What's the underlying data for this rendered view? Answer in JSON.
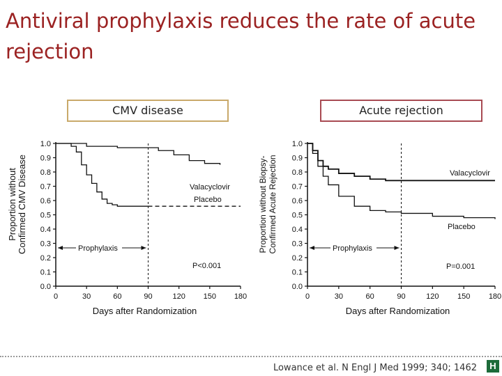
{
  "slide": {
    "title": "Antiviral prophylaxis reduces the rate of acute rejection",
    "citation": "Lowance et al. N Engl J Med 1999; 340; 1462",
    "logo_text": "H"
  },
  "colors": {
    "title": "#9b2222",
    "box_left_border": "#c9a96a",
    "box_right_border": "#a84a52",
    "line": "#111111"
  },
  "chart_data": [
    {
      "type": "line",
      "box_label": "CMV disease",
      "ylabel": [
        "Proportion without",
        "Confirmed CMV Disease"
      ],
      "xlabel": "Days after Randomization",
      "x_ticks": [
        0,
        30,
        60,
        90,
        120,
        150,
        180
      ],
      "y_ticks": [
        "0.0",
        "0.1",
        "0.2",
        "0.3",
        "0.4",
        "0.5",
        "0.6",
        "0.7",
        "0.8",
        "0.9",
        "1.0"
      ],
      "xlim": [
        0,
        180
      ],
      "ylim": [
        0,
        1
      ],
      "prophylaxis_end_day": 90,
      "prophylaxis_label": "Prophylaxis",
      "p_value": "P<0.001",
      "series": [
        {
          "name": "Valacyclovir",
          "style": "solid-then-dashed",
          "x": [
            0,
            20,
            30,
            45,
            60,
            80,
            90,
            100,
            115,
            130,
            145,
            160
          ],
          "y": [
            1.0,
            1.0,
            0.98,
            0.98,
            0.97,
            0.97,
            0.97,
            0.95,
            0.92,
            0.88,
            0.86,
            0.85
          ]
        },
        {
          "name": "Placebo",
          "style": "solid-then-dashed",
          "x": [
            0,
            15,
            20,
            25,
            30,
            35,
            40,
            45,
            50,
            55,
            60,
            90,
            180
          ],
          "y": [
            1.0,
            0.98,
            0.94,
            0.85,
            0.78,
            0.72,
            0.66,
            0.61,
            0.58,
            0.57,
            0.56,
            0.56,
            0.56
          ]
        }
      ]
    },
    {
      "type": "line",
      "box_label": "Acute rejection",
      "ylabel": [
        "Proportion without Biopsy-",
        "Confirmed Acute Rejection"
      ],
      "xlabel": "Days after Randomization",
      "x_ticks": [
        0,
        30,
        60,
        90,
        120,
        150,
        180
      ],
      "y_ticks": [
        "0.0",
        "0.1",
        "0.2",
        "0.3",
        "0.4",
        "0.5",
        "0.6",
        "0.7",
        "0.8",
        "0.9",
        "1.0"
      ],
      "xlim": [
        0,
        180
      ],
      "ylim": [
        0,
        1
      ],
      "prophylaxis_end_day": 90,
      "prophylaxis_label": "Prophylaxis",
      "p_value": "P=0.001",
      "series": [
        {
          "name": "Valacyclovir",
          "style": "solid",
          "x": [
            0,
            5,
            10,
            15,
            20,
            30,
            45,
            60,
            75,
            90,
            180
          ],
          "y": [
            1.0,
            0.95,
            0.88,
            0.84,
            0.82,
            0.79,
            0.77,
            0.75,
            0.74,
            0.74,
            0.74
          ]
        },
        {
          "name": "Placebo",
          "style": "solid",
          "x": [
            0,
            5,
            10,
            15,
            20,
            30,
            45,
            60,
            75,
            90,
            120,
            150,
            180
          ],
          "y": [
            1.0,
            0.93,
            0.84,
            0.77,
            0.71,
            0.63,
            0.56,
            0.53,
            0.52,
            0.51,
            0.49,
            0.48,
            0.47
          ]
        }
      ]
    }
  ]
}
